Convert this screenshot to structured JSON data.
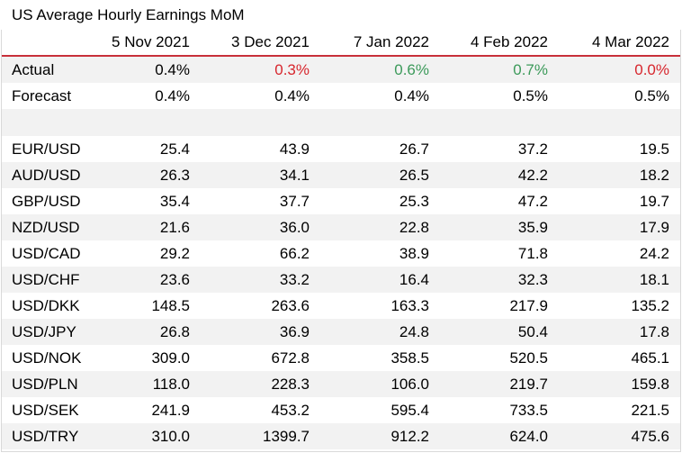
{
  "title": "US Average Hourly Earnings MoM",
  "columns": [
    "",
    "5 Nov 2021",
    "3 Dec 2021",
    "7 Jan 2022",
    "4 Feb 2022",
    "4 Mar 2022"
  ],
  "actual": {
    "label": "Actual",
    "values": [
      "0.4%",
      "0.3%",
      "0.6%",
      "0.7%",
      "0.0%"
    ],
    "colors": [
      "#000000",
      "#d7262d",
      "#3c9a5a",
      "#3c9a5a",
      "#d7262d"
    ]
  },
  "forecast": {
    "label": "Forecast",
    "values": [
      "0.4%",
      "0.4%",
      "0.4%",
      "0.5%",
      "0.5%"
    ]
  },
  "pairs": [
    {
      "label": "EUR/USD",
      "values": [
        "25.4",
        "43.9",
        "26.7",
        "37.2",
        "19.5"
      ]
    },
    {
      "label": "AUD/USD",
      "values": [
        "26.3",
        "34.1",
        "26.5",
        "42.2",
        "18.2"
      ]
    },
    {
      "label": "GBP/USD",
      "values": [
        "35.4",
        "37.7",
        "25.3",
        "47.2",
        "19.7"
      ]
    },
    {
      "label": "NZD/USD",
      "values": [
        "21.6",
        "36.0",
        "22.8",
        "35.9",
        "17.9"
      ]
    },
    {
      "label": "USD/CAD",
      "values": [
        "29.2",
        "66.2",
        "38.9",
        "71.8",
        "24.2"
      ]
    },
    {
      "label": "USD/CHF",
      "values": [
        "23.6",
        "33.2",
        "16.4",
        "32.3",
        "18.1"
      ]
    },
    {
      "label": "USD/DKK",
      "values": [
        "148.5",
        "263.6",
        "163.3",
        "217.9",
        "135.2"
      ]
    },
    {
      "label": "USD/JPY",
      "values": [
        "26.8",
        "36.9",
        "24.8",
        "50.4",
        "17.8"
      ]
    },
    {
      "label": "USD/NOK",
      "values": [
        "309.0",
        "672.8",
        "358.5",
        "520.5",
        "465.1"
      ]
    },
    {
      "label": "USD/PLN",
      "values": [
        "118.0",
        "228.3",
        "106.0",
        "219.7",
        "159.8"
      ]
    },
    {
      "label": "USD/SEK",
      "values": [
        "241.9",
        "453.2",
        "595.4",
        "733.5",
        "221.5"
      ]
    },
    {
      "label": "USD/TRY",
      "values": [
        "310.0",
        "1399.7",
        "912.2",
        "624.0",
        "475.6"
      ]
    }
  ]
}
